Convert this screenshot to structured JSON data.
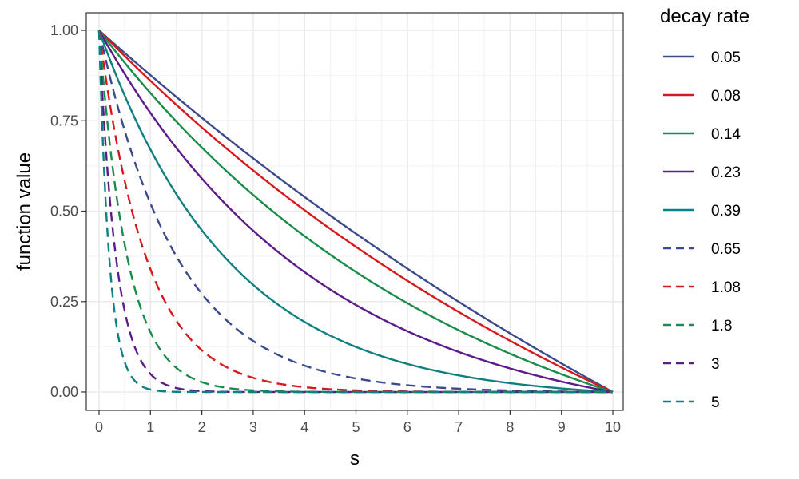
{
  "chart_data": {
    "type": "line",
    "title": "",
    "xlabel": "s",
    "ylabel": "function value",
    "xlim": [
      0,
      10
    ],
    "ylim": [
      0,
      1
    ],
    "x_ticks": [
      0,
      1,
      2,
      3,
      4,
      5,
      6,
      7,
      8,
      9,
      10
    ],
    "x_tick_labels": [
      "0",
      "1",
      "2",
      "3",
      "4",
      "5",
      "6",
      "7",
      "8",
      "9",
      "10"
    ],
    "y_ticks": [
      0,
      0.25,
      0.5,
      0.75,
      1
    ],
    "y_tick_labels": [
      "0.00",
      "0.25",
      "0.50",
      "0.75",
      "1.00"
    ],
    "grid": true,
    "legend": {
      "title": "decay rate",
      "position": "right"
    },
    "function": "(exp(-rate*s) - exp(-rate*10)) / (1 - exp(-rate*10))",
    "series": [
      {
        "name": "0.05",
        "rate": 0.05,
        "color": "#3b4a8c",
        "dash": "solid"
      },
      {
        "name": "0.08",
        "rate": 0.08,
        "color": "#d7191c",
        "dash": "solid"
      },
      {
        "name": "0.14",
        "rate": 0.14,
        "color": "#1a8c4a",
        "dash": "solid"
      },
      {
        "name": "0.23",
        "rate": 0.23,
        "color": "#5e1a8a",
        "dash": "solid"
      },
      {
        "name": "0.39",
        "rate": 0.39,
        "color": "#0f8080",
        "dash": "solid"
      },
      {
        "name": "0.65",
        "rate": 0.65,
        "color": "#3b4a8c",
        "dash": "dashed"
      },
      {
        "name": "1.08",
        "rate": 1.08,
        "color": "#d7191c",
        "dash": "dashed"
      },
      {
        "name": "1.8",
        "rate": 1.8,
        "color": "#1a8c4a",
        "dash": "dashed"
      },
      {
        "name": "3",
        "rate": 3,
        "color": "#5e1a8a",
        "dash": "dashed"
      },
      {
        "name": "5",
        "rate": 5,
        "color": "#0f8080",
        "dash": "dashed"
      }
    ]
  }
}
